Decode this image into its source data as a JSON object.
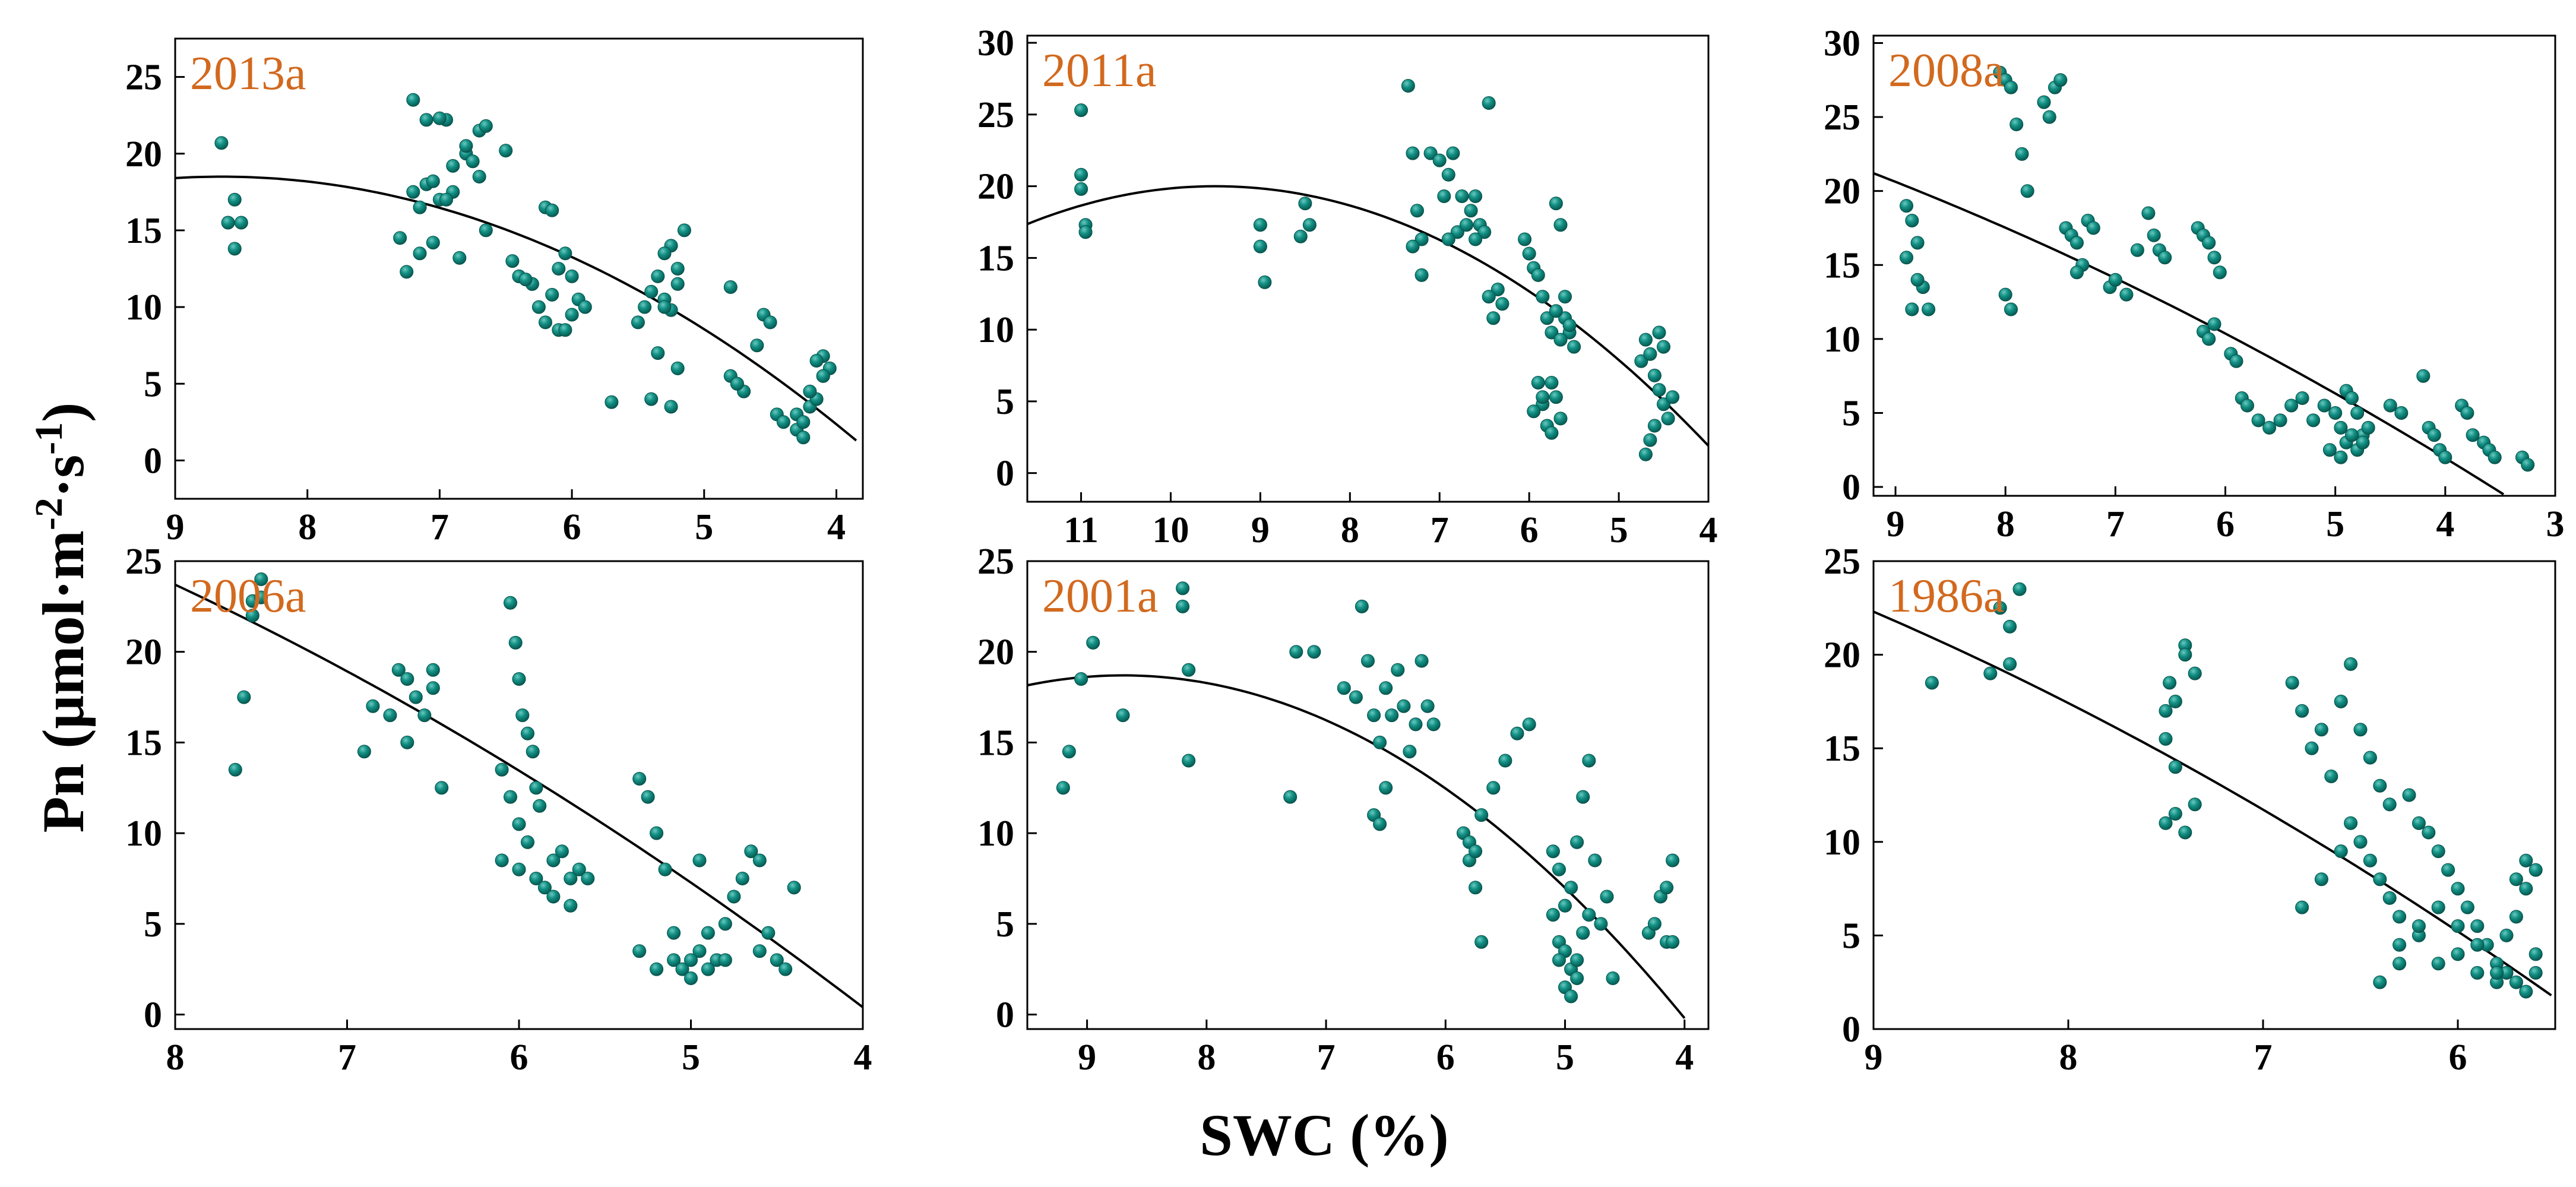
{
  "figure": {
    "ylabel": "Pn (μmol·m-2·s-1)",
    "ylabel_parts": {
      "main": "Pn (μmol·m",
      "exp1": "-2",
      "dot": "·s",
      "exp2": "-1",
      "close": ")"
    },
    "xlabel": "SWC (%)"
  },
  "colors": {
    "point": "#0b8078",
    "point_highlight": "#5fc2b8",
    "fit": "#000000",
    "panel_label": "#d2691e",
    "axis": "#000000"
  },
  "chart_data": [
    {
      "type": "scatter",
      "panel_label": "2013a",
      "xlabel": "SWC (%)",
      "ylabel": "Pn (μmol·m-2·s-1)",
      "xlim": [
        9,
        3.8
      ],
      "ylim": [
        -2.5,
        27.5
      ],
      "xticks": [
        9,
        8,
        7,
        6,
        5,
        4
      ],
      "yticks": [
        0,
        5,
        10,
        15,
        20,
        25
      ],
      "grid": false,
      "fit": {
        "type": "quadratic",
        "vertex_x": 8.65,
        "vertex_y": 18.5,
        "end_x": 3.85,
        "end_y": 1.3
      },
      "x": [
        8.65,
        8.6,
        8.55,
        8.5,
        8.55,
        7.3,
        7.25,
        7.2,
        7.15,
        7.1,
        7.05,
        7.0,
        6.95,
        6.9,
        6.85,
        6.8,
        6.75,
        6.7,
        6.65,
        7.2,
        7.1,
        7.0,
        6.9,
        6.7,
        7.15,
        7.05,
        6.95,
        6.8,
        6.65,
        6.5,
        6.45,
        6.4,
        6.3,
        6.2,
        6.15,
        6.1,
        6.05,
        6.0,
        5.95,
        6.3,
        6.25,
        6.2,
        6.1,
        6.0,
        5.9,
        6.4,
        6.35,
        6.15,
        6.05,
        5.7,
        5.5,
        5.45,
        5.4,
        5.35,
        5.3,
        5.25,
        5.2,
        5.2,
        5.15,
        5.25,
        5.3,
        5.35,
        5.4,
        5.25,
        5.2,
        5.3,
        4.8,
        4.75,
        4.7,
        4.6,
        4.55,
        4.5,
        4.8,
        4.75,
        4.45,
        4.4,
        4.3,
        4.25,
        4.2,
        4.15,
        4.1,
        4.05,
        4.1,
        4.15,
        4.2,
        4.3,
        4.25,
        4.1
      ],
      "y": [
        20.7,
        15.5,
        17.0,
        15.5,
        13.8,
        14.5,
        12.3,
        17.5,
        13.5,
        18.0,
        14.2,
        17.0,
        22.2,
        17.5,
        13.2,
        20.0,
        19.5,
        21.5,
        21.8,
        23.5,
        22.2,
        22.3,
        19.2,
        18.5,
        16.5,
        18.2,
        17.0,
        20.5,
        15.0,
        20.2,
        13.0,
        12.0,
        11.5,
        16.5,
        16.3,
        12.5,
        13.5,
        12.0,
        10.5,
        11.5,
        10.0,
        9.0,
        8.5,
        9.5,
        10.0,
        12.0,
        11.8,
        10.8,
        8.5,
        3.8,
        9.0,
        10.0,
        11.0,
        12.0,
        10.5,
        9.8,
        11.5,
        12.5,
        15.0,
        14.0,
        13.5,
        7.0,
        4.0,
        3.5,
        6.0,
        10.0,
        11.3,
        5.0,
        4.5,
        7.5,
        9.5,
        9.0,
        5.5,
        5.0,
        3.0,
        2.5,
        2.0,
        1.5,
        3.5,
        4.0,
        5.5,
        6.0,
        6.8,
        6.5,
        4.5,
        3.0,
        2.5,
        5.5
      ]
    },
    {
      "type": "scatter",
      "panel_label": "2011a",
      "xlabel": "SWC (%)",
      "ylabel": "Pn (μmol·m-2·s-1)",
      "xlim": [
        11.6,
        4.0
      ],
      "ylim": [
        -2.0,
        30.5
      ],
      "xticks": [
        11,
        10,
        9,
        8,
        7,
        6,
        5,
        4
      ],
      "yticks": [
        0,
        5,
        10,
        15,
        20,
        25,
        30
      ],
      "grid": false,
      "fit": {
        "type": "quadratic",
        "vertex_x": 9.5,
        "vertex_y": 20.0,
        "start_x": 11.6,
        "start_y": 17.8,
        "end_x": 4.0,
        "end_y": 1.9
      },
      "x": [
        11.0,
        11.0,
        11.0,
        10.95,
        10.95,
        9.0,
        9.0,
        8.95,
        8.5,
        8.45,
        8.55,
        7.35,
        7.3,
        7.25,
        7.2,
        7.1,
        7.0,
        6.95,
        6.9,
        6.85,
        6.8,
        6.75,
        6.7,
        6.65,
        6.6,
        6.55,
        6.5,
        6.45,
        6.4,
        6.35,
        6.3,
        7.3,
        7.2,
        6.9,
        6.6,
        6.45,
        6.05,
        6.0,
        5.95,
        5.9,
        5.85,
        5.8,
        5.75,
        5.7,
        5.65,
        5.6,
        5.55,
        5.5,
        5.9,
        5.85,
        5.8,
        5.75,
        5.7,
        5.65,
        5.6,
        5.95,
        5.85,
        5.75,
        5.65,
        5.55,
        5.7,
        4.75,
        4.7,
        4.65,
        4.6,
        4.55,
        4.5,
        4.45,
        4.6,
        4.65,
        4.7,
        4.55,
        4.5,
        4.4
      ],
      "y": [
        25.3,
        20.8,
        19.8,
        17.3,
        16.8,
        17.3,
        15.8,
        13.3,
        18.8,
        17.3,
        16.5,
        27.0,
        22.3,
        18.3,
        16.3,
        22.3,
        21.8,
        19.3,
        20.8,
        22.3,
        16.8,
        19.3,
        17.3,
        18.3,
        19.3,
        17.3,
        16.8,
        25.8,
        10.8,
        12.8,
        11.8,
        15.8,
        13.8,
        16.3,
        16.3,
        12.3,
        16.3,
        15.3,
        14.3,
        13.8,
        12.3,
        10.8,
        9.8,
        18.8,
        17.3,
        12.3,
        9.8,
        8.8,
        6.3,
        4.8,
        3.3,
        2.8,
        5.3,
        9.3,
        10.8,
        4.3,
        5.3,
        6.3,
        3.8,
        10.3,
        11.3,
        7.8,
        9.3,
        8.3,
        6.8,
        5.8,
        4.8,
        3.8,
        3.3,
        2.3,
        1.3,
        9.8,
        8.8,
        5.3
      ]
    },
    {
      "type": "scatter",
      "panel_label": "2008a",
      "xlabel": "SWC (%)",
      "ylabel": "Pn (μmol·m-2·s-1)",
      "xlim": [
        9.2,
        3.0
      ],
      "ylim": [
        -0.6,
        30.5
      ],
      "xticks": [
        9,
        8,
        7,
        6,
        5,
        4,
        3
      ],
      "yticks": [
        0,
        5,
        10,
        15,
        20,
        25,
        30
      ],
      "grid": false,
      "fit": {
        "type": "quadratic",
        "start_x": 9.2,
        "start_y": 21.2,
        "end_x": 3.47,
        "end_y": -0.5
      },
      "x": [
        8.9,
        8.85,
        8.8,
        8.75,
        8.85,
        8.9,
        8.8,
        8.7,
        8.05,
        8.0,
        7.95,
        7.9,
        7.85,
        7.8,
        8.0,
        7.95,
        7.65,
        7.6,
        7.55,
        7.5,
        7.45,
        7.4,
        7.35,
        7.3,
        7.35,
        7.25,
        7.2,
        7.05,
        7.0,
        6.9,
        6.8,
        6.7,
        6.65,
        6.6,
        6.55,
        6.25,
        6.2,
        6.15,
        6.1,
        6.05,
        6.2,
        6.15,
        6.1,
        5.95,
        5.9,
        5.85,
        5.8,
        5.7,
        5.6,
        5.5,
        5.4,
        5.3,
        5.2,
        5.1,
        5.0,
        4.95,
        4.9,
        4.85,
        4.8,
        4.75,
        5.05,
        4.95,
        4.9,
        4.85,
        4.8,
        4.75,
        4.7,
        4.5,
        4.4,
        4.2,
        4.15,
        4.1,
        4.05,
        4.0,
        3.85,
        3.8,
        3.75,
        3.65,
        3.6,
        3.55,
        3.3,
        3.25
      ],
      "y": [
        19.0,
        18.0,
        16.5,
        13.5,
        12.0,
        15.5,
        14.0,
        12.0,
        28.0,
        27.5,
        27.0,
        24.5,
        22.5,
        20.0,
        13.0,
        12.0,
        26.0,
        25.0,
        27.0,
        27.5,
        17.5,
        17.0,
        16.5,
        15.0,
        14.5,
        18.0,
        17.5,
        13.5,
        14.0,
        13.0,
        16.0,
        18.5,
        17.0,
        16.0,
        15.5,
        17.5,
        17.0,
        16.5,
        15.5,
        14.5,
        10.5,
        10.0,
        11.0,
        9.0,
        8.5,
        6.0,
        5.5,
        4.5,
        4.0,
        4.5,
        5.5,
        6.0,
        4.5,
        5.5,
        5.0,
        4.0,
        6.5,
        6.0,
        5.0,
        3.5,
        2.5,
        2.0,
        3.0,
        3.5,
        2.5,
        3.0,
        4.0,
        5.5,
        5.0,
        7.5,
        4.0,
        3.5,
        2.5,
        2.0,
        5.5,
        5.0,
        3.5,
        3.0,
        2.5,
        2.0,
        2.0,
        1.5
      ]
    },
    {
      "type": "scatter",
      "panel_label": "2006a",
      "xlabel": "SWC (%)",
      "ylabel": "Pn (μmol·m-2·s-1)",
      "xlim": [
        8,
        4
      ],
      "ylim": [
        -0.8,
        25.0
      ],
      "xticks": [
        8,
        7,
        6,
        5,
        4
      ],
      "yticks": [
        0,
        5,
        10,
        15,
        20,
        25
      ],
      "grid": false,
      "fit": {
        "type": "quadratic",
        "start_x": 8.0,
        "start_y": 23.7,
        "end_x": 4.0,
        "end_y": 0.4
      },
      "x": [
        7.65,
        7.6,
        7.55,
        7.5,
        7.55,
        7.5,
        6.9,
        6.85,
        6.75,
        6.7,
        6.65,
        6.6,
        6.55,
        6.5,
        6.45,
        6.65,
        6.5,
        6.05,
        6.02,
        6.0,
        5.98,
        5.95,
        5.92,
        5.9,
        5.88,
        6.1,
        6.05,
        6.0,
        5.95,
        6.1,
        6.0,
        5.9,
        5.85,
        5.8,
        5.75,
        5.7,
        5.65,
        5.8,
        5.7,
        5.6,
        5.3,
        5.25,
        5.2,
        5.15,
        5.3,
        5.2,
        5.1,
        5.05,
        5.0,
        4.95,
        4.9,
        4.85,
        4.8,
        4.75,
        4.7,
        4.65,
        4.6,
        4.55,
        4.5,
        4.45,
        4.4,
        4.95,
        4.9,
        5.0,
        5.1,
        4.8,
        4.6
      ],
      "y": [
        13.5,
        17.5,
        22.8,
        24.0,
        22.0,
        23.0,
        14.5,
        17.0,
        16.5,
        19.0,
        18.5,
        17.5,
        16.5,
        19.0,
        12.5,
        15.0,
        18.0,
        22.7,
        20.5,
        18.5,
        16.5,
        15.5,
        14.5,
        12.5,
        11.5,
        13.5,
        12.0,
        10.5,
        9.5,
        8.5,
        8.0,
        7.5,
        7.0,
        8.5,
        9.0,
        7.5,
        8.0,
        6.5,
        6.0,
        7.5,
        13.0,
        12.0,
        10.0,
        8.0,
        3.5,
        2.5,
        3.0,
        2.5,
        2.0,
        3.5,
        4.5,
        3.0,
        5.0,
        6.5,
        7.5,
        9.0,
        8.5,
        4.5,
        3.0,
        2.5,
        7.0,
        8.5,
        2.5,
        3.0,
        4.5,
        3.0,
        3.5
      ]
    },
    {
      "type": "scatter",
      "panel_label": "2001a",
      "xlabel": "SWC (%)",
      "ylabel": "Pn (μmol·m-2·s-1)",
      "xlim": [
        9.5,
        3.8
      ],
      "ylim": [
        -0.8,
        25.0
      ],
      "xticks": [
        9,
        8,
        7,
        6,
        5,
        4
      ],
      "yticks": [
        0,
        5,
        10,
        15,
        20,
        25
      ],
      "grid": false,
      "fit": {
        "type": "quadratic",
        "vertex_x": 8.7,
        "vertex_y": 18.7,
        "start_x": 9.5,
        "start_y": 18.1,
        "end_x": 4.0,
        "end_y": -0.2
      },
      "x": [
        9.2,
        9.15,
        9.05,
        8.95,
        8.7,
        8.2,
        8.2,
        8.15,
        8.15,
        7.3,
        7.25,
        7.1,
        6.85,
        6.75,
        6.7,
        6.65,
        6.6,
        6.55,
        6.5,
        6.45,
        6.4,
        6.35,
        6.3,
        6.25,
        6.2,
        6.15,
        6.1,
        6.6,
        6.55,
        6.5,
        5.85,
        5.8,
        5.75,
        5.7,
        5.8,
        5.75,
        5.7,
        5.6,
        5.5,
        5.4,
        5.3,
        5.1,
        5.05,
        5.0,
        4.95,
        4.9,
        4.85,
        4.8,
        4.75,
        5.1,
        5.05,
        5.0,
        4.95,
        4.9,
        4.85,
        4.8,
        5.05,
        5.0,
        4.95,
        4.9,
        4.7,
        4.65,
        4.6,
        4.3,
        4.25,
        4.2,
        4.15,
        4.1,
        4.15,
        4.1
      ],
      "y": [
        12.5,
        14.5,
        18.5,
        20.5,
        16.5,
        23.5,
        22.5,
        19.0,
        14.0,
        12.0,
        20.0,
        20.0,
        18.0,
        17.5,
        22.5,
        19.5,
        16.5,
        15.0,
        18.0,
        16.5,
        19.0,
        17.0,
        14.5,
        16.0,
        19.5,
        17.0,
        16.0,
        11.0,
        10.5,
        12.5,
        10.0,
        9.5,
        7.0,
        4.0,
        8.5,
        9.0,
        11.0,
        12.5,
        14.0,
        15.5,
        16.0,
        9.0,
        8.0,
        6.0,
        7.0,
        9.5,
        12.0,
        14.0,
        8.5,
        5.5,
        4.0,
        3.5,
        2.5,
        2.0,
        4.5,
        5.5,
        3.0,
        1.5,
        1.0,
        3.0,
        5.0,
        6.5,
        2.0,
        4.5,
        5.0,
        6.5,
        4.0,
        8.5,
        7.0,
        4.0
      ]
    },
    {
      "type": "scatter",
      "panel_label": "1986a",
      "xlabel": "SWC (%)",
      "ylabel": "Pn (μmol·m-2·s-1)",
      "xlim": [
        9,
        5.5
      ],
      "ylim": [
        0,
        25.0
      ],
      "xticks": [
        9,
        8,
        7,
        6
      ],
      "yticks": [
        0,
        5,
        10,
        15,
        20,
        25
      ],
      "grid": false,
      "fit": {
        "type": "quadratic",
        "start_x": 9.0,
        "start_y": 22.3,
        "end_x": 5.52,
        "end_y": 1.8
      },
      "x": [
        8.7,
        8.4,
        8.35,
        8.3,
        8.3,
        8.25,
        7.5,
        7.48,
        7.45,
        7.4,
        7.4,
        7.35,
        7.5,
        7.45,
        7.4,
        7.5,
        7.45,
        7.35,
        6.85,
        6.8,
        6.75,
        6.7,
        6.65,
        6.6,
        6.55,
        6.5,
        6.45,
        6.4,
        6.35,
        6.8,
        6.7,
        6.6,
        6.55,
        6.5,
        6.45,
        6.4,
        6.35,
        6.3,
        6.25,
        6.2,
        6.15,
        6.1,
        6.05,
        6.0,
        5.95,
        5.9,
        5.85,
        5.8,
        5.75,
        5.7,
        5.65,
        5.6,
        6.3,
        6.2,
        6.1,
        6.0,
        5.9,
        5.8,
        5.75,
        5.7,
        5.65,
        5.6,
        6.1,
        6.0,
        5.9,
        5.8,
        6.4,
        6.3,
        6.2,
        5.7,
        5.65,
        5.6
      ],
      "y": [
        18.5,
        19.0,
        22.5,
        21.5,
        19.5,
        23.5,
        17.0,
        18.5,
        17.5,
        20.5,
        20.0,
        19.0,
        11.0,
        11.5,
        10.5,
        15.5,
        14.0,
        12.0,
        18.5,
        17.0,
        15.0,
        16.0,
        13.5,
        17.5,
        19.5,
        16.0,
        14.5,
        13.0,
        12.0,
        6.5,
        8.0,
        9.5,
        11.0,
        10.0,
        9.0,
        8.0,
        7.0,
        6.0,
        12.5,
        11.0,
        10.5,
        9.5,
        8.5,
        7.5,
        6.5,
        5.5,
        4.5,
        3.5,
        3.0,
        2.5,
        2.0,
        3.0,
        4.5,
        5.0,
        3.5,
        4.0,
        3.0,
        2.5,
        5.0,
        6.0,
        7.5,
        8.5,
        6.5,
        5.5,
        4.5,
        3.0,
        2.5,
        3.5,
        5.5,
        8.0,
        9.0,
        4.0
      ]
    }
  ]
}
